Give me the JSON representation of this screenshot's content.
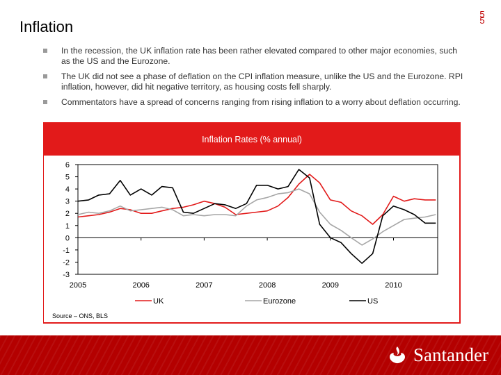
{
  "page": {
    "number": "5",
    "number_echo": "5"
  },
  "title": "Inflation",
  "bullets": [
    "In the recession, the UK inflation rate has been rather elevated compared to other major economies, such as the US and the Eurozone.",
    "The UK did not see a phase of deflation on the CPI inflation measure, unlike the US and the Eurozone.  RPI inflation, however, did hit negative territory, as housing costs fell sharply.",
    "Commentators have a spread of concerns ranging from rising inflation to a worry about deflation occurring."
  ],
  "source": "Source – ONS, BLS",
  "brand": {
    "name": "Santander",
    "color": "#e21a1a"
  },
  "chart_data": {
    "type": "line",
    "title": "Inflation Rates (% annual)",
    "xlabel": "",
    "ylabel": "",
    "xlim": [
      2005,
      2010.7
    ],
    "ylim": [
      -3,
      6
    ],
    "yticks": [
      -3,
      -2,
      -1,
      0,
      1,
      2,
      3,
      4,
      5,
      6
    ],
    "xticks": [
      "2005",
      "2006",
      "2007",
      "2008",
      "2009",
      "2010"
    ],
    "legend_position": "bottom",
    "series": [
      {
        "name": "UK",
        "color": "#e21a1a",
        "points": [
          [
            2005.0,
            1.7
          ],
          [
            2005.17,
            1.8
          ],
          [
            2005.33,
            1.9
          ],
          [
            2005.5,
            2.1
          ],
          [
            2005.67,
            2.4
          ],
          [
            2005.83,
            2.3
          ],
          [
            2006.0,
            2.0
          ],
          [
            2006.17,
            2.0
          ],
          [
            2006.33,
            2.2
          ],
          [
            2006.5,
            2.4
          ],
          [
            2006.67,
            2.5
          ],
          [
            2006.83,
            2.7
          ],
          [
            2007.0,
            3.0
          ],
          [
            2007.17,
            2.8
          ],
          [
            2007.33,
            2.5
          ],
          [
            2007.5,
            1.9
          ],
          [
            2007.67,
            2.0
          ],
          [
            2007.83,
            2.1
          ],
          [
            2008.0,
            2.2
          ],
          [
            2008.17,
            2.6
          ],
          [
            2008.33,
            3.3
          ],
          [
            2008.5,
            4.4
          ],
          [
            2008.67,
            5.2
          ],
          [
            2008.83,
            4.5
          ],
          [
            2009.0,
            3.1
          ],
          [
            2009.17,
            2.9
          ],
          [
            2009.33,
            2.2
          ],
          [
            2009.5,
            1.8
          ],
          [
            2009.67,
            1.1
          ],
          [
            2009.83,
            1.9
          ],
          [
            2010.0,
            3.4
          ],
          [
            2010.17,
            3.0
          ],
          [
            2010.33,
            3.2
          ],
          [
            2010.5,
            3.1
          ],
          [
            2010.67,
            3.1
          ]
        ]
      },
      {
        "name": "Eurozone",
        "color": "#a6a6a6",
        "points": [
          [
            2005.0,
            1.9
          ],
          [
            2005.17,
            2.1
          ],
          [
            2005.33,
            2.0
          ],
          [
            2005.5,
            2.2
          ],
          [
            2005.67,
            2.6
          ],
          [
            2005.83,
            2.2
          ],
          [
            2006.0,
            2.3
          ],
          [
            2006.17,
            2.4
          ],
          [
            2006.33,
            2.5
          ],
          [
            2006.5,
            2.3
          ],
          [
            2006.67,
            1.8
          ],
          [
            2006.83,
            1.9
          ],
          [
            2007.0,
            1.8
          ],
          [
            2007.17,
            1.9
          ],
          [
            2007.33,
            1.9
          ],
          [
            2007.5,
            1.8
          ],
          [
            2007.67,
            2.6
          ],
          [
            2007.83,
            3.1
          ],
          [
            2008.0,
            3.3
          ],
          [
            2008.17,
            3.6
          ],
          [
            2008.33,
            3.7
          ],
          [
            2008.5,
            4.0
          ],
          [
            2008.67,
            3.6
          ],
          [
            2008.83,
            2.1
          ],
          [
            2009.0,
            1.1
          ],
          [
            2009.17,
            0.6
          ],
          [
            2009.33,
            0.0
          ],
          [
            2009.5,
            -0.6
          ],
          [
            2009.67,
            -0.1
          ],
          [
            2009.83,
            0.5
          ],
          [
            2010.0,
            1.0
          ],
          [
            2010.17,
            1.5
          ],
          [
            2010.33,
            1.6
          ],
          [
            2010.5,
            1.7
          ],
          [
            2010.67,
            1.9
          ]
        ]
      },
      {
        "name": "US",
        "color": "#000000",
        "points": [
          [
            2005.0,
            3.0
          ],
          [
            2005.17,
            3.1
          ],
          [
            2005.33,
            3.5
          ],
          [
            2005.5,
            3.6
          ],
          [
            2005.67,
            4.7
          ],
          [
            2005.83,
            3.5
          ],
          [
            2006.0,
            4.0
          ],
          [
            2006.17,
            3.5
          ],
          [
            2006.33,
            4.2
          ],
          [
            2006.5,
            4.1
          ],
          [
            2006.67,
            2.1
          ],
          [
            2006.83,
            2.0
          ],
          [
            2007.0,
            2.4
          ],
          [
            2007.17,
            2.8
          ],
          [
            2007.33,
            2.7
          ],
          [
            2007.5,
            2.4
          ],
          [
            2007.67,
            2.8
          ],
          [
            2007.83,
            4.3
          ],
          [
            2008.0,
            4.3
          ],
          [
            2008.17,
            4.0
          ],
          [
            2008.33,
            4.2
          ],
          [
            2008.5,
            5.6
          ],
          [
            2008.67,
            4.9
          ],
          [
            2008.83,
            1.1
          ],
          [
            2009.0,
            0.0
          ],
          [
            2009.17,
            -0.4
          ],
          [
            2009.33,
            -1.3
          ],
          [
            2009.5,
            -2.1
          ],
          [
            2009.67,
            -1.3
          ],
          [
            2009.83,
            1.8
          ],
          [
            2010.0,
            2.6
          ],
          [
            2010.17,
            2.3
          ],
          [
            2010.33,
            1.9
          ],
          [
            2010.5,
            1.2
          ],
          [
            2010.67,
            1.2
          ]
        ]
      }
    ]
  }
}
